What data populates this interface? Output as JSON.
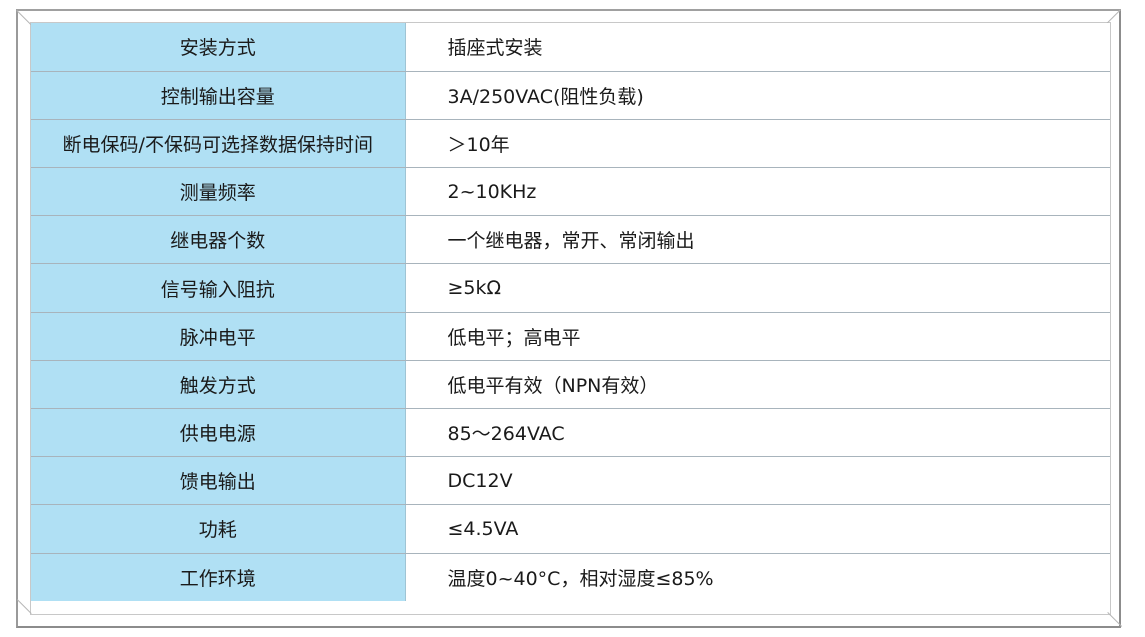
{
  "specs": [
    {
      "label": "安装方式",
      "value": "插座式安装"
    },
    {
      "label": "控制输出容量",
      "value": "3A/250VAC(阻性负载)"
    },
    {
      "label": "断电保码/不保码可选择数据保持时间",
      "value": "＞10年"
    },
    {
      "label": "测量频率",
      "value": "2~10KHz"
    },
    {
      "label": "继电器个数",
      "value": "一个继电器，常开、常闭输出"
    },
    {
      "label": "信号输入阻抗",
      "value": "≥5kΩ"
    },
    {
      "label": "脉冲电平",
      "value": "低电平；高电平"
    },
    {
      "label": "触发方式",
      "value": "低电平有效（NPN有效）"
    },
    {
      "label": "供电电源",
      "value": "85～264VAC"
    },
    {
      "label": "馈电输出",
      "value": "DC12V"
    },
    {
      "label": "功耗",
      "value": "≤4.5VA"
    },
    {
      "label": "工作环境",
      "value": "温度0~40°C，相对湿度≤85%"
    }
  ],
  "colors": {
    "label_bg": "#b0e0f4",
    "value_bg": "#ffffff"
  }
}
